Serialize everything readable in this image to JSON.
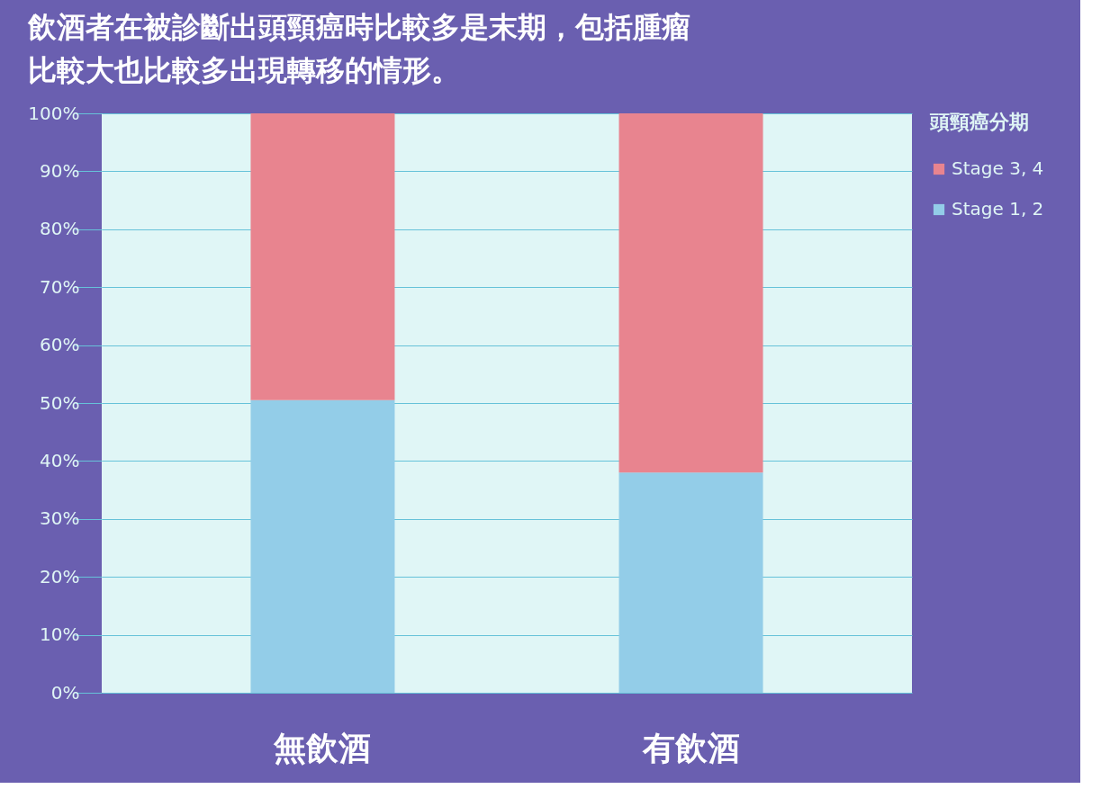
{
  "chart_data": {
    "type": "bar",
    "stacked": true,
    "title": "飲酒者在被診斷出頭頸癌時比較多是末期，包括腫瘤比較大也比較多出現轉移的情形。",
    "categories": [
      "無飲酒",
      "有飲酒"
    ],
    "series": [
      {
        "name": "Stage 1, 2",
        "color": "#93cde8",
        "values": [
          50.5,
          38
        ]
      },
      {
        "name": "Stage 3, 4",
        "color": "#e8848f",
        "values": [
          49.5,
          62
        ]
      }
    ],
    "legend_title": "頭頸癌分期",
    "legend": "right",
    "grid": "y",
    "ylim": [
      0,
      100
    ],
    "yticks": [
      {
        "value": 0,
        "label": "0%"
      },
      {
        "value": 10,
        "label": "10%"
      },
      {
        "value": 20,
        "label": "20%"
      },
      {
        "value": 30,
        "label": "30%"
      },
      {
        "value": 40,
        "label": "40%"
      },
      {
        "value": 50,
        "label": "50%"
      },
      {
        "value": 60,
        "label": "60%"
      },
      {
        "value": 70,
        "label": "70%"
      },
      {
        "value": 80,
        "label": "80%"
      },
      {
        "value": 90,
        "label": "90%"
      },
      {
        "value": 100,
        "label": "100%"
      }
    ]
  }
}
